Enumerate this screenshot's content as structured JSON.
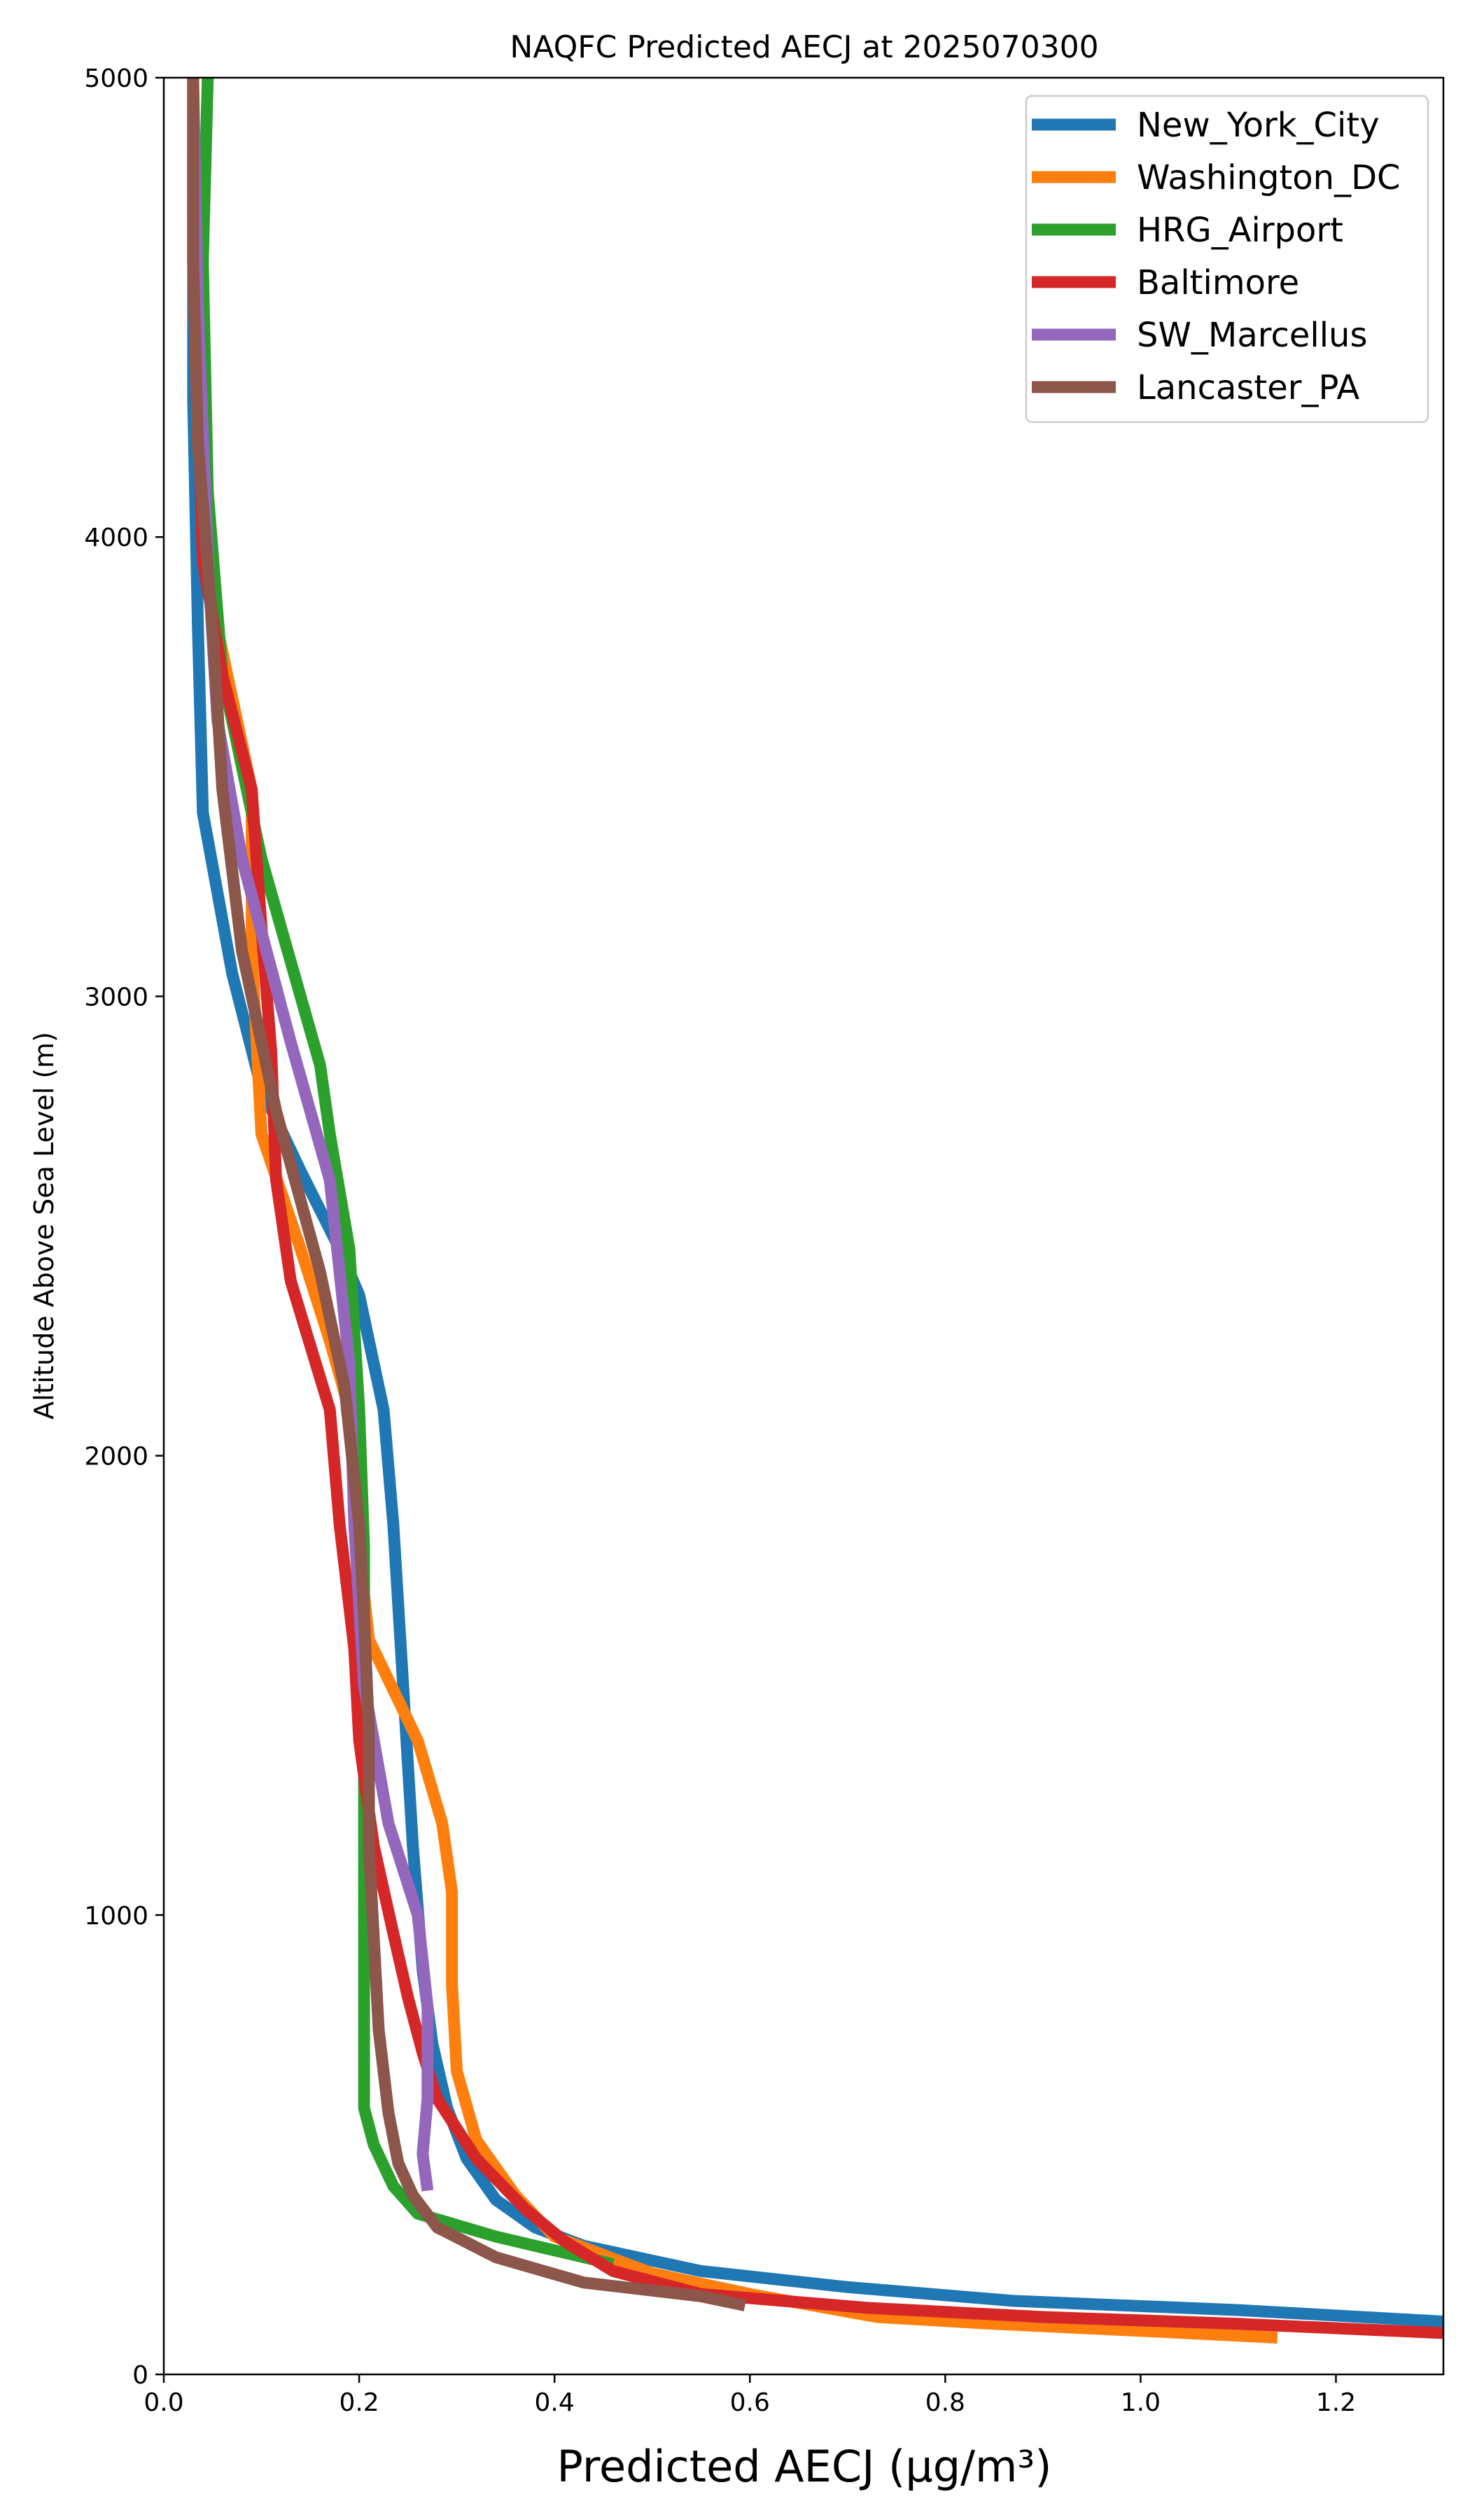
{
  "chart_data": {
    "type": "line",
    "title": "NAQFC Predicted AECJ at 2025070300",
    "xlabel": "Predicted AECJ (μg/m³)",
    "ylabel": "Altitude Above Sea Level (m)",
    "xlim": [
      0,
      1.31
    ],
    "ylim": [
      0,
      5000
    ],
    "xticks": [
      "0.0",
      "0.2",
      "0.4",
      "0.6",
      "0.8",
      "1.0",
      "1.2"
    ],
    "yticks": [
      "0",
      "1000",
      "2000",
      "3000",
      "4000",
      "5000"
    ],
    "grid": false,
    "legend_position": "top-right",
    "series": [
      {
        "name": "New_York_City",
        "color": "#1f77b4",
        "points": [
          [
            1.31,
            115
          ],
          [
            1.1,
            140
          ],
          [
            0.87,
            160
          ],
          [
            0.7,
            190
          ],
          [
            0.55,
            225
          ],
          [
            0.43,
            280
          ],
          [
            0.38,
            320
          ],
          [
            0.34,
            380
          ],
          [
            0.31,
            470
          ],
          [
            0.29,
            580
          ],
          [
            0.275,
            720
          ],
          [
            0.265,
            880
          ],
          [
            0.255,
            1150
          ],
          [
            0.245,
            1500
          ],
          [
            0.235,
            1850
          ],
          [
            0.225,
            2100
          ],
          [
            0.2,
            2350
          ],
          [
            0.18,
            2450
          ],
          [
            0.14,
            2620
          ],
          [
            0.1,
            2800
          ],
          [
            0.07,
            3050
          ],
          [
            0.04,
            3400
          ],
          [
            0.035,
            3800
          ],
          [
            0.03,
            4300
          ],
          [
            0.03,
            5000
          ]
        ]
      },
      {
        "name": "Washington_DC",
        "color": "#ff7f0e",
        "points": [
          [
            1.14,
            80
          ],
          [
            1.0,
            95
          ],
          [
            0.85,
            110
          ],
          [
            0.73,
            125
          ],
          [
            0.6,
            175
          ],
          [
            0.5,
            220
          ],
          [
            0.4,
            300
          ],
          [
            0.36,
            390
          ],
          [
            0.32,
            510
          ],
          [
            0.3,
            660
          ],
          [
            0.295,
            850
          ],
          [
            0.295,
            1050
          ],
          [
            0.285,
            1200
          ],
          [
            0.26,
            1380
          ],
          [
            0.21,
            1600
          ],
          [
            0.2,
            1800
          ],
          [
            0.19,
            2100
          ],
          [
            0.17,
            2250
          ],
          [
            0.14,
            2450
          ],
          [
            0.1,
            2700
          ],
          [
            0.09,
            3100
          ],
          [
            0.09,
            3450
          ],
          [
            0.05,
            3850
          ],
          [
            0.035,
            4200
          ],
          [
            0.03,
            4600
          ],
          [
            0.03,
            5000
          ]
        ]
      },
      {
        "name": "HRG_Airport",
        "color": "#2ca02c",
        "points": [
          [
            0.46,
            240
          ],
          [
            0.42,
            260
          ],
          [
            0.34,
            300
          ],
          [
            0.26,
            350
          ],
          [
            0.235,
            410
          ],
          [
            0.215,
            500
          ],
          [
            0.205,
            580
          ],
          [
            0.205,
            800
          ],
          [
            0.205,
            1100
          ],
          [
            0.205,
            1400
          ],
          [
            0.205,
            1800
          ],
          [
            0.2,
            2100
          ],
          [
            0.19,
            2450
          ],
          [
            0.17,
            2700
          ],
          [
            0.16,
            2850
          ],
          [
            0.1,
            3300
          ],
          [
            0.06,
            3700
          ],
          [
            0.045,
            4100
          ],
          [
            0.04,
            4600
          ],
          [
            0.045,
            5000
          ]
        ]
      },
      {
        "name": "Baltimore",
        "color": "#d62728",
        "points": [
          [
            1.31,
            90
          ],
          [
            1.1,
            110
          ],
          [
            0.9,
            125
          ],
          [
            0.72,
            145
          ],
          [
            0.55,
            175
          ],
          [
            0.46,
            225
          ],
          [
            0.41,
            290
          ],
          [
            0.37,
            360
          ],
          [
            0.32,
            470
          ],
          [
            0.28,
            600
          ],
          [
            0.265,
            700
          ],
          [
            0.25,
            820
          ],
          [
            0.235,
            960
          ],
          [
            0.215,
            1150
          ],
          [
            0.2,
            1380
          ],
          [
            0.195,
            1580
          ],
          [
            0.18,
            1850
          ],
          [
            0.17,
            2100
          ],
          [
            0.13,
            2380
          ],
          [
            0.115,
            2600
          ],
          [
            0.11,
            2880
          ],
          [
            0.1,
            3150
          ],
          [
            0.09,
            3450
          ],
          [
            0.06,
            3700
          ],
          [
            0.04,
            3950
          ],
          [
            0.035,
            4300
          ],
          [
            0.03,
            4700
          ],
          [
            0.03,
            5000
          ]
        ]
      },
      {
        "name": "SW_Marcellus",
        "color": "#9467bd",
        "points": [
          [
            0.27,
            400
          ],
          [
            0.265,
            480
          ],
          [
            0.27,
            600
          ],
          [
            0.27,
            800
          ],
          [
            0.26,
            1000
          ],
          [
            0.23,
            1200
          ],
          [
            0.205,
            1500
          ],
          [
            0.195,
            1850
          ],
          [
            0.19,
            2200
          ],
          [
            0.17,
            2600
          ],
          [
            0.13,
            2900
          ],
          [
            0.08,
            3300
          ],
          [
            0.055,
            3600
          ],
          [
            0.045,
            3950
          ],
          [
            0.035,
            4500
          ],
          [
            0.03,
            5000
          ]
        ]
      },
      {
        "name": "Lancaster_PA",
        "color": "#8c564b",
        "points": [
          [
            0.595,
            150
          ],
          [
            0.55,
            170
          ],
          [
            0.43,
            200
          ],
          [
            0.34,
            255
          ],
          [
            0.28,
            320
          ],
          [
            0.255,
            390
          ],
          [
            0.24,
            460
          ],
          [
            0.23,
            570
          ],
          [
            0.22,
            750
          ],
          [
            0.215,
            950
          ],
          [
            0.21,
            1150
          ],
          [
            0.21,
            1400
          ],
          [
            0.205,
            1650
          ],
          [
            0.2,
            1850
          ],
          [
            0.185,
            2150
          ],
          [
            0.16,
            2400
          ],
          [
            0.115,
            2750
          ],
          [
            0.08,
            3100
          ],
          [
            0.06,
            3450
          ],
          [
            0.05,
            3800
          ],
          [
            0.035,
            4200
          ],
          [
            0.03,
            4600
          ],
          [
            0.03,
            5000
          ]
        ]
      }
    ]
  }
}
